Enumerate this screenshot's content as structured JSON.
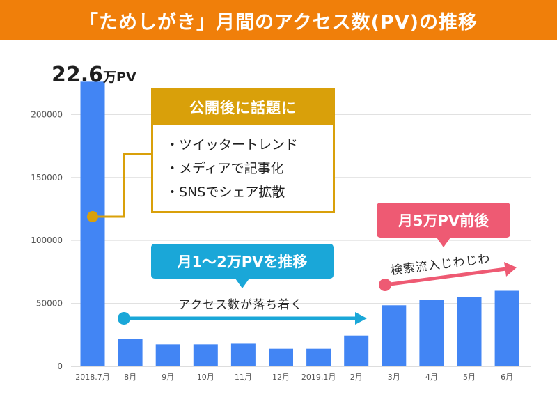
{
  "title": "「ためしがき」月間のアクセス数(PV)の推移",
  "chart_data": {
    "type": "bar",
    "categories": [
      "2018.7月",
      "8月",
      "9月",
      "10月",
      "11月",
      "12月",
      "2019.1月",
      "2月",
      "3月",
      "4月",
      "5月",
      "6月"
    ],
    "values": [
      226000,
      22000,
      17500,
      17500,
      18000,
      14000,
      14000,
      24500,
      48500,
      53000,
      55000,
      60000
    ],
    "yticks": [
      0,
      50000,
      100000,
      150000,
      200000
    ],
    "ylim": [
      0,
      240000
    ],
    "grid": true,
    "bar_color": "#4285f4"
  },
  "peak_label": {
    "number": "22.6",
    "unit": "万PV"
  },
  "callout": {
    "heading": "公開後に話題に",
    "items": [
      "ツイッタートレンド",
      "メディアで記事化",
      "SNSでシェア拡散"
    ],
    "color": "#d9a00a"
  },
  "phase_blue": {
    "label": "月1〜2万PVを推移",
    "caption": "アクセス数が落ち着く",
    "color": "#1aa7d8"
  },
  "phase_pink": {
    "label": "月5万PV前後",
    "caption": "検索流入じわじわ",
    "color": "#ee5a73"
  },
  "colors": {
    "title_bg": "#f07f0a",
    "grid": "#dddddd"
  }
}
